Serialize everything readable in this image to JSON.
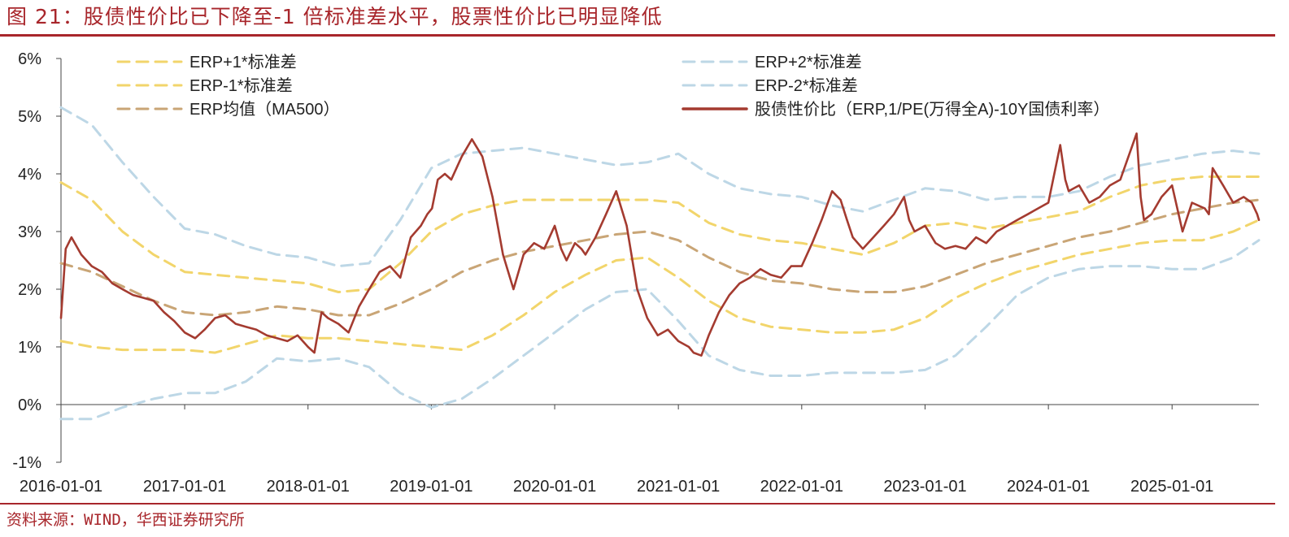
{
  "title": "图 21：股债性价比已下降至-1 倍标准差水平，股票性价比已明显降低",
  "source": "资料来源：WIND，华西证券研究所",
  "colors": {
    "brand": "#a8262b",
    "erp_line": "#a43b30",
    "band1": "#f2d56b",
    "band2": "#bdd7e6",
    "ma": "#c9a576",
    "axis": "#444444"
  },
  "chart_data": {
    "type": "line",
    "y_unit": "%",
    "ylim": [
      -1,
      6
    ],
    "yticks": [
      "6%",
      "5%",
      "4%",
      "3%",
      "2%",
      "1%",
      "0%",
      "-1%"
    ],
    "xlim": [
      "2016-01-01",
      "2025-09-15"
    ],
    "xticks": [
      "2016-01-01",
      "2017-01-01",
      "2018-01-01",
      "2019-01-01",
      "2020-01-01",
      "2021-01-01",
      "2022-01-01",
      "2023-01-01",
      "2024-01-01",
      "2025-01-01"
    ],
    "legend": [
      "ERP+1*标准差",
      "ERP+2*标准差",
      "ERP-1*标准差",
      "ERP-2*标准差",
      "ERP均值（MA500）",
      "股债性价比（ERP,1/PE(万得全A)-10Y国债利率）"
    ],
    "series": [
      {
        "key": "plus2",
        "name": "ERP+2*标准差",
        "style": "dashed",
        "color": "#bdd7e6",
        "x": [
          "2016-01-01",
          "2016-04-01",
          "2016-07-01",
          "2016-10-01",
          "2017-01-01",
          "2017-04-01",
          "2017-07-01",
          "2017-10-01",
          "2018-01-01",
          "2018-04-01",
          "2018-07-01",
          "2018-10-01",
          "2019-01-01",
          "2019-04-01",
          "2019-07-01",
          "2019-10-01",
          "2020-01-01",
          "2020-04-01",
          "2020-07-01",
          "2020-10-01",
          "2021-01-01",
          "2021-04-01",
          "2021-07-01",
          "2021-10-01",
          "2022-01-01",
          "2022-04-01",
          "2022-07-01",
          "2022-10-01",
          "2023-01-01",
          "2023-04-01",
          "2023-07-01",
          "2023-10-01",
          "2024-01-01",
          "2024-04-01",
          "2024-07-01",
          "2024-10-01",
          "2025-01-01",
          "2025-04-01",
          "2025-07-01",
          "2025-09-15"
        ],
        "y": [
          5.15,
          4.85,
          4.2,
          3.6,
          3.05,
          2.95,
          2.75,
          2.6,
          2.55,
          2.4,
          2.45,
          3.2,
          4.1,
          4.35,
          4.4,
          4.45,
          4.35,
          4.25,
          4.15,
          4.2,
          4.35,
          4.0,
          3.75,
          3.65,
          3.6,
          3.45,
          3.35,
          3.55,
          3.75,
          3.7,
          3.55,
          3.6,
          3.6,
          3.7,
          3.95,
          4.15,
          4.25,
          4.35,
          4.4,
          4.35
        ]
      },
      {
        "key": "plus1",
        "name": "ERP+1*标准差",
        "style": "dashed",
        "color": "#f2d56b",
        "x": [
          "2016-01-01",
          "2016-04-01",
          "2016-07-01",
          "2016-10-01",
          "2017-01-01",
          "2017-04-01",
          "2017-07-01",
          "2017-10-01",
          "2018-01-01",
          "2018-04-01",
          "2018-07-01",
          "2018-10-01",
          "2019-01-01",
          "2019-04-01",
          "2019-07-01",
          "2019-10-01",
          "2020-01-01",
          "2020-04-01",
          "2020-07-01",
          "2020-10-01",
          "2021-01-01",
          "2021-04-01",
          "2021-07-01",
          "2021-10-01",
          "2022-01-01",
          "2022-04-01",
          "2022-07-01",
          "2022-10-01",
          "2023-01-01",
          "2023-04-01",
          "2023-07-01",
          "2023-10-01",
          "2024-01-01",
          "2024-04-01",
          "2024-07-01",
          "2024-10-01",
          "2025-01-01",
          "2025-04-01",
          "2025-07-01",
          "2025-09-15"
        ],
        "y": [
          3.85,
          3.55,
          3.0,
          2.6,
          2.3,
          2.25,
          2.2,
          2.15,
          2.1,
          1.95,
          2.0,
          2.45,
          3.0,
          3.3,
          3.45,
          3.55,
          3.55,
          3.55,
          3.55,
          3.55,
          3.5,
          3.15,
          2.95,
          2.85,
          2.8,
          2.7,
          2.6,
          2.8,
          3.1,
          3.15,
          3.05,
          3.15,
          3.25,
          3.35,
          3.6,
          3.8,
          3.9,
          3.95,
          3.95,
          3.95
        ]
      },
      {
        "key": "ma",
        "name": "ERP均值（MA500）",
        "style": "dashed",
        "color": "#c9a576",
        "x": [
          "2016-01-01",
          "2016-04-01",
          "2016-07-01",
          "2016-10-01",
          "2017-01-01",
          "2017-04-01",
          "2017-07-01",
          "2017-10-01",
          "2018-01-01",
          "2018-04-01",
          "2018-07-01",
          "2018-10-01",
          "2019-01-01",
          "2019-04-01",
          "2019-07-01",
          "2019-10-01",
          "2020-01-01",
          "2020-04-01",
          "2020-07-01",
          "2020-10-01",
          "2021-01-01",
          "2021-04-01",
          "2021-07-01",
          "2021-10-01",
          "2022-01-01",
          "2022-04-01",
          "2022-07-01",
          "2022-10-01",
          "2023-01-01",
          "2023-04-01",
          "2023-07-01",
          "2023-10-01",
          "2024-01-01",
          "2024-04-01",
          "2024-07-01",
          "2024-10-01",
          "2025-01-01",
          "2025-04-01",
          "2025-07-01",
          "2025-09-15"
        ],
        "y": [
          2.45,
          2.3,
          2.05,
          1.8,
          1.6,
          1.55,
          1.6,
          1.7,
          1.65,
          1.55,
          1.55,
          1.75,
          2.0,
          2.3,
          2.5,
          2.65,
          2.75,
          2.85,
          2.95,
          3.0,
          2.85,
          2.55,
          2.3,
          2.15,
          2.1,
          2.0,
          1.95,
          1.95,
          2.05,
          2.25,
          2.45,
          2.6,
          2.75,
          2.9,
          3.0,
          3.15,
          3.3,
          3.4,
          3.5,
          3.55
        ]
      },
      {
        "key": "minus1",
        "name": "ERP-1*标准差",
        "style": "dashed",
        "color": "#f2d56b",
        "x": [
          "2016-01-01",
          "2016-04-01",
          "2016-07-01",
          "2016-10-01",
          "2017-01-01",
          "2017-04-01",
          "2017-07-01",
          "2017-10-01",
          "2018-01-01",
          "2018-04-01",
          "2018-07-01",
          "2018-10-01",
          "2019-01-01",
          "2019-04-01",
          "2019-07-01",
          "2019-10-01",
          "2020-01-01",
          "2020-04-01",
          "2020-07-01",
          "2020-10-01",
          "2021-01-01",
          "2021-04-01",
          "2021-07-01",
          "2021-10-01",
          "2022-01-01",
          "2022-04-01",
          "2022-07-01",
          "2022-10-01",
          "2023-01-01",
          "2023-04-01",
          "2023-07-01",
          "2023-10-01",
          "2024-01-01",
          "2024-04-01",
          "2024-07-01",
          "2024-10-01",
          "2025-01-01",
          "2025-04-01",
          "2025-07-01",
          "2025-09-15"
        ],
        "y": [
          1.1,
          1.0,
          0.95,
          0.95,
          0.95,
          0.9,
          1.05,
          1.2,
          1.15,
          1.15,
          1.1,
          1.05,
          1.0,
          0.95,
          1.2,
          1.55,
          1.95,
          2.25,
          2.5,
          2.55,
          2.2,
          1.8,
          1.5,
          1.35,
          1.3,
          1.25,
          1.25,
          1.3,
          1.5,
          1.85,
          2.1,
          2.3,
          2.45,
          2.6,
          2.7,
          2.8,
          2.85,
          2.85,
          3.0,
          3.2
        ]
      },
      {
        "key": "minus2",
        "name": "ERP-2*标准差",
        "style": "dashed",
        "color": "#bdd7e6",
        "x": [
          "2016-01-01",
          "2016-04-01",
          "2016-07-01",
          "2016-10-01",
          "2017-01-01",
          "2017-04-01",
          "2017-07-01",
          "2017-10-01",
          "2018-01-01",
          "2018-04-01",
          "2018-07-01",
          "2018-10-01",
          "2019-01-01",
          "2019-04-01",
          "2019-07-01",
          "2019-10-01",
          "2020-01-01",
          "2020-04-01",
          "2020-07-01",
          "2020-10-01",
          "2021-01-01",
          "2021-04-01",
          "2021-07-01",
          "2021-10-01",
          "2022-01-01",
          "2022-04-01",
          "2022-07-01",
          "2022-10-01",
          "2023-01-01",
          "2023-04-01",
          "2023-07-01",
          "2023-10-01",
          "2024-01-01",
          "2024-04-01",
          "2024-07-01",
          "2024-10-01",
          "2025-01-01",
          "2025-04-01",
          "2025-07-01",
          "2025-09-15"
        ],
        "y": [
          -0.25,
          -0.25,
          -0.05,
          0.1,
          0.2,
          0.2,
          0.4,
          0.8,
          0.75,
          0.8,
          0.65,
          0.2,
          -0.05,
          0.1,
          0.45,
          0.85,
          1.25,
          1.65,
          1.95,
          2.0,
          1.45,
          0.85,
          0.6,
          0.5,
          0.5,
          0.55,
          0.55,
          0.55,
          0.6,
          0.85,
          1.35,
          1.9,
          2.2,
          2.35,
          2.4,
          2.4,
          2.35,
          2.35,
          2.55,
          2.85
        ]
      },
      {
        "key": "erp",
        "name": "股债性价比（ERP,1/PE(万得全A)-10Y国债利率）",
        "style": "solid",
        "color": "#a43b30",
        "x": [
          "2016-01-01",
          "2016-01-15",
          "2016-02-01",
          "2016-03-01",
          "2016-04-01",
          "2016-05-01",
          "2016-06-01",
          "2016-07-01",
          "2016-08-01",
          "2016-09-01",
          "2016-10-01",
          "2016-11-01",
          "2016-12-01",
          "2017-01-01",
          "2017-02-01",
          "2017-03-01",
          "2017-04-01",
          "2017-05-01",
          "2017-06-01",
          "2017-07-01",
          "2017-08-01",
          "2017-09-01",
          "2017-10-01",
          "2017-11-01",
          "2017-12-01",
          "2018-01-01",
          "2018-01-20",
          "2018-02-10",
          "2018-03-01",
          "2018-04-01",
          "2018-05-01",
          "2018-06-01",
          "2018-07-01",
          "2018-08-01",
          "2018-09-01",
          "2018-10-01",
          "2018-11-01",
          "2018-12-01",
          "2018-12-20",
          "2019-01-03",
          "2019-01-20",
          "2019-02-10",
          "2019-03-01",
          "2019-04-01",
          "2019-05-01",
          "2019-06-01",
          "2019-07-01",
          "2019-08-01",
          "2019-09-01",
          "2019-10-01",
          "2019-11-01",
          "2019-12-01",
          "2020-01-01",
          "2020-01-20",
          "2020-02-05",
          "2020-03-01",
          "2020-03-20",
          "2020-04-01",
          "2020-05-01",
          "2020-06-01",
          "2020-07-01",
          "2020-08-01",
          "2020-09-01",
          "2020-10-01",
          "2020-11-01",
          "2020-12-01",
          "2021-01-01",
          "2021-02-01",
          "2021-02-15",
          "2021-03-10",
          "2021-04-01",
          "2021-05-01",
          "2021-06-01",
          "2021-07-01",
          "2021-08-01",
          "2021-09-01",
          "2021-10-01",
          "2021-11-01",
          "2021-12-01",
          "2022-01-01",
          "2022-02-01",
          "2022-03-01",
          "2022-04-01",
          "2022-04-26",
          "2022-05-15",
          "2022-06-01",
          "2022-07-01",
          "2022-08-01",
          "2022-09-01",
          "2022-10-01",
          "2022-10-31",
          "2022-11-15",
          "2022-12-01",
          "2023-01-01",
          "2023-02-01",
          "2023-03-01",
          "2023-04-01",
          "2023-05-01",
          "2023-06-01",
          "2023-07-01",
          "2023-08-01",
          "2023-09-01",
          "2023-10-01",
          "2023-11-01",
          "2023-12-01",
          "2024-01-01",
          "2024-02-05",
          "2024-02-20",
          "2024-03-01",
          "2024-04-01",
          "2024-05-01",
          "2024-06-01",
          "2024-07-01",
          "2024-08-01",
          "2024-09-18",
          "2024-09-30",
          "2024-10-10",
          "2024-11-01",
          "2024-12-01",
          "2025-01-01",
          "2025-02-01",
          "2025-03-01",
          "2025-04-08",
          "2025-04-20",
          "2025-05-01",
          "2025-06-01",
          "2025-07-01",
          "2025-08-01",
          "2025-08-25",
          "2025-09-10",
          "2025-09-15"
        ],
        "y": [
          1.5,
          2.7,
          2.9,
          2.6,
          2.4,
          2.3,
          2.1,
          2.0,
          1.9,
          1.85,
          1.8,
          1.6,
          1.45,
          1.25,
          1.15,
          1.3,
          1.5,
          1.55,
          1.4,
          1.35,
          1.3,
          1.2,
          1.15,
          1.1,
          1.2,
          1.0,
          0.9,
          1.6,
          1.5,
          1.4,
          1.25,
          1.7,
          2.0,
          2.3,
          2.4,
          2.2,
          2.9,
          3.1,
          3.3,
          3.4,
          3.9,
          4.0,
          3.9,
          4.3,
          4.6,
          4.3,
          3.6,
          2.6,
          2.0,
          2.6,
          2.8,
          2.7,
          3.1,
          2.7,
          2.5,
          2.8,
          2.7,
          2.6,
          2.9,
          3.3,
          3.7,
          3.1,
          2.0,
          1.5,
          1.2,
          1.3,
          1.1,
          1.0,
          0.9,
          0.85,
          1.2,
          1.6,
          1.9,
          2.1,
          2.2,
          2.35,
          2.25,
          2.2,
          2.4,
          2.4,
          2.8,
          3.2,
          3.7,
          3.55,
          3.2,
          2.9,
          2.7,
          2.9,
          3.1,
          3.3,
          3.6,
          3.2,
          3.0,
          3.1,
          2.8,
          2.7,
          2.75,
          2.7,
          2.9,
          2.8,
          3.0,
          3.1,
          3.2,
          3.3,
          3.4,
          3.5,
          4.5,
          3.9,
          3.7,
          3.8,
          3.5,
          3.6,
          3.8,
          3.9,
          4.7,
          3.6,
          3.2,
          3.3,
          3.6,
          3.8,
          3.0,
          3.5,
          3.4,
          3.3,
          4.1,
          3.8,
          3.5,
          3.6,
          3.5,
          3.3,
          3.2
        ]
      }
    ]
  }
}
